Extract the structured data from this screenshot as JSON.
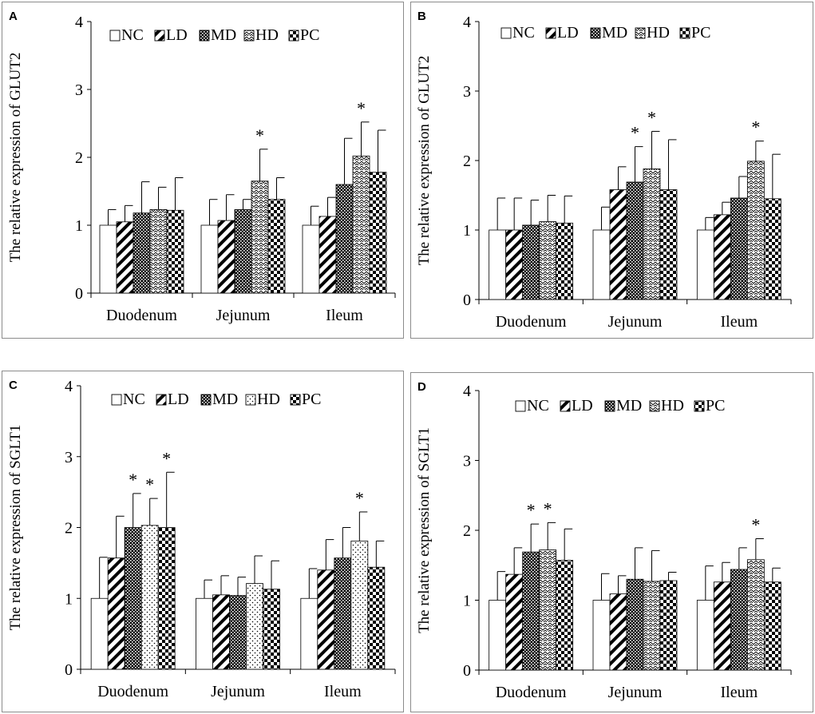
{
  "figure": {
    "panels": [
      "A",
      "B",
      "C",
      "D"
    ]
  },
  "chart_data": [
    {
      "panel": "A",
      "type": "bar",
      "ylabel": "The relative expression of GLUT2",
      "xlabel": "",
      "ylim": [
        0,
        4
      ],
      "yticks": [
        "0",
        "1",
        "2",
        "3",
        "4"
      ],
      "categories": [
        "Duodenum",
        "Jejunum",
        "Ileum"
      ],
      "legend": [
        "NC",
        "LD",
        "MD",
        "HD",
        "PC"
      ],
      "legend_position": "top",
      "series": [
        {
          "name": "NC",
          "values": [
            1.0,
            1.0,
            1.0
          ],
          "errors": [
            0.23,
            0.38,
            0.28
          ]
        },
        {
          "name": "LD",
          "values": [
            1.05,
            1.07,
            1.13
          ],
          "errors": [
            0.24,
            0.38,
            0.28
          ]
        },
        {
          "name": "MD",
          "values": [
            1.18,
            1.23,
            1.6
          ],
          "errors": [
            0.46,
            0.15,
            0.68
          ]
        },
        {
          "name": "HD",
          "values": [
            1.23,
            1.65,
            2.02
          ],
          "errors": [
            0.33,
            0.47,
            0.5
          ]
        },
        {
          "name": "PC",
          "values": [
            1.22,
            1.38,
            1.78
          ],
          "errors": [
            0.48,
            0.32,
            0.62
          ]
        }
      ],
      "annotations": [
        {
          "category": "Jejunum",
          "series": [
            "HD"
          ],
          "text": "*"
        },
        {
          "category": "Ileum",
          "series": [
            "HD"
          ],
          "text": "*"
        }
      ]
    },
    {
      "panel": "B",
      "type": "bar",
      "ylabel": "The relative expression of GLUT2",
      "xlabel": "",
      "ylim": [
        0,
        4
      ],
      "yticks": [
        "0",
        "1",
        "2",
        "3",
        "4"
      ],
      "categories": [
        "Duodenum",
        "Jejunum",
        "Ileum"
      ],
      "legend": [
        "NC",
        "LD",
        "MD",
        "HD",
        "PC"
      ],
      "legend_position": "top",
      "series": [
        {
          "name": "NC",
          "values": [
            1.0,
            1.0,
            1.0
          ],
          "errors": [
            0.46,
            0.33,
            0.18
          ]
        },
        {
          "name": "LD",
          "values": [
            1.0,
            1.58,
            1.22
          ],
          "errors": [
            0.46,
            0.33,
            0.18
          ]
        },
        {
          "name": "MD",
          "values": [
            1.07,
            1.69,
            1.46
          ],
          "errors": [
            0.36,
            0.51,
            0.31
          ]
        },
        {
          "name": "HD",
          "values": [
            1.12,
            1.88,
            1.99
          ],
          "errors": [
            0.38,
            0.54,
            0.29
          ]
        },
        {
          "name": "PC",
          "values": [
            1.1,
            1.58,
            1.45
          ],
          "errors": [
            0.39,
            0.72,
            0.64
          ]
        }
      ],
      "annotations": [
        {
          "category": "Jejunum",
          "series": [
            "MD",
            "HD"
          ],
          "text": "*"
        },
        {
          "category": "Ileum",
          "series": [
            "HD"
          ],
          "text": "*"
        }
      ]
    },
    {
      "panel": "C",
      "type": "bar",
      "ylabel": "The relative expression of SGLT1",
      "xlabel": "",
      "ylim": [
        0,
        4
      ],
      "yticks": [
        "0",
        "1",
        "2",
        "3",
        "4"
      ],
      "categories": [
        "Duodenum",
        "Jejunum",
        "Ileum"
      ],
      "legend": [
        "NC",
        "LD",
        "MD",
        "HD",
        "PC"
      ],
      "legend_position": "top",
      "series": [
        {
          "name": "NC",
          "values": [
            1.0,
            1.0,
            1.0
          ],
          "errors": [
            0.58,
            0.26,
            0.42
          ]
        },
        {
          "name": "LD",
          "values": [
            1.57,
            1.05,
            1.4
          ],
          "errors": [
            0.59,
            0.27,
            0.43
          ]
        },
        {
          "name": "MD",
          "values": [
            2.0,
            1.04,
            1.57
          ],
          "errors": [
            0.48,
            0.26,
            0.43
          ]
        },
        {
          "name": "HD",
          "values": [
            2.03,
            1.21,
            1.81
          ],
          "errors": [
            0.38,
            0.39,
            0.41
          ]
        },
        {
          "name": "PC",
          "values": [
            2.0,
            1.13,
            1.44
          ],
          "errors": [
            0.78,
            0.4,
            0.37
          ]
        }
      ],
      "annotations": [
        {
          "category": "Duodenum",
          "series": [
            "MD",
            "HD",
            "PC"
          ],
          "text": "*"
        },
        {
          "category": "Ileum",
          "series": [
            "HD"
          ],
          "text": "*"
        }
      ]
    },
    {
      "panel": "D",
      "type": "bar",
      "ylabel": "The relative expression of SGLT1",
      "xlabel": "",
      "ylim": [
        0,
        4
      ],
      "yticks": [
        "0",
        "1",
        "2",
        "3",
        "4"
      ],
      "categories": [
        "Duodenum",
        "Jejunum",
        "Ileum"
      ],
      "legend": [
        "NC",
        "LD",
        "MD",
        "HD",
        "PC"
      ],
      "legend_position": "top",
      "series": [
        {
          "name": "NC",
          "values": [
            1.0,
            1.0,
            1.0
          ],
          "errors": [
            0.41,
            0.38,
            0.49
          ]
        },
        {
          "name": "LD",
          "values": [
            1.37,
            1.09,
            1.26
          ],
          "errors": [
            0.38,
            0.26,
            0.28
          ]
        },
        {
          "name": "MD",
          "values": [
            1.69,
            1.3,
            1.44
          ],
          "errors": [
            0.4,
            0.45,
            0.31
          ]
        },
        {
          "name": "HD",
          "values": [
            1.72,
            1.27,
            1.58
          ],
          "errors": [
            0.39,
            0.44,
            0.3
          ]
        },
        {
          "name": "PC",
          "values": [
            1.57,
            1.28,
            1.26
          ],
          "errors": [
            0.45,
            0.12,
            0.2
          ]
        }
      ],
      "annotations": [
        {
          "category": "Duodenum",
          "series": [
            "MD",
            "HD"
          ],
          "text": "*"
        },
        {
          "category": "Ileum",
          "series": [
            "HD"
          ],
          "text": "*"
        }
      ]
    }
  ]
}
